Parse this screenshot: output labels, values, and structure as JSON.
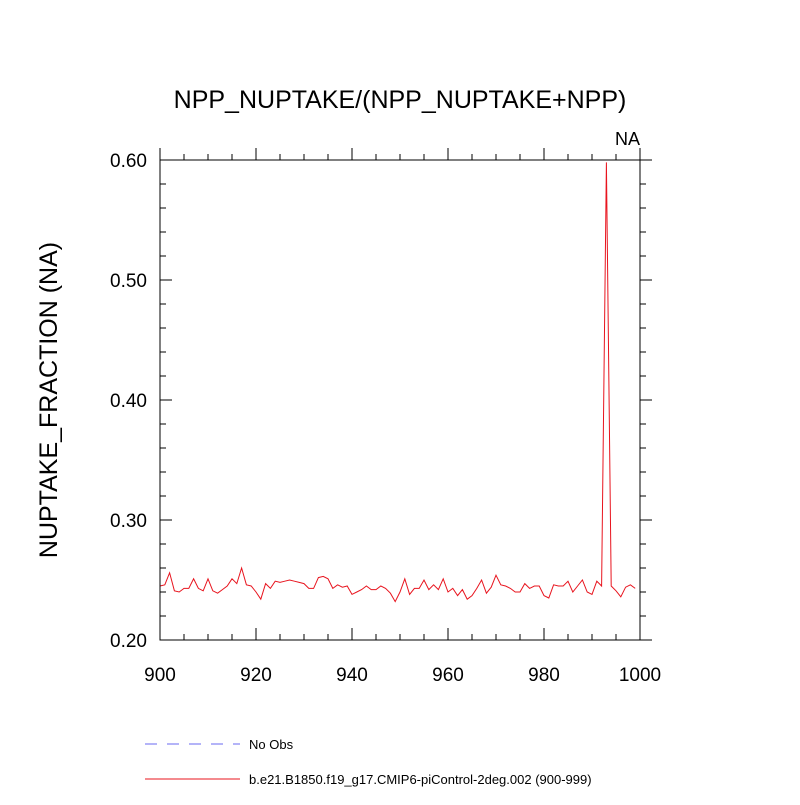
{
  "chart_data": {
    "type": "line",
    "title": "NPP_NUPTAKE/(NPP_NUPTAKE+NPP)",
    "corner_label": "NA",
    "ylabel": "NUPTAKE_FRACTION  (NA)",
    "xlabel": "",
    "xlim": [
      900,
      1000
    ],
    "ylim": [
      0.2,
      0.6
    ],
    "x_ticks": [
      900,
      920,
      940,
      960,
      980,
      1000
    ],
    "y_ticks": [
      0.2,
      0.3,
      0.4,
      0.5,
      0.6
    ],
    "y_tick_labels": [
      "0.20",
      "0.30",
      "0.40",
      "0.50",
      "0.60"
    ],
    "x_minor_step": 5,
    "y_minor_step": 0.02,
    "grid": false,
    "legend_position": "bottom",
    "series": [
      {
        "name": "No Obs",
        "color": "#6a6af0",
        "dash": "dashed",
        "x": [],
        "y": []
      },
      {
        "name": "b.e21.B1850.f19_g17.CMIP6-piControl-2deg.002 (900-999)",
        "color": "#e8141e",
        "dash": "solid",
        "x": [
          900,
          901,
          902,
          903,
          904,
          905,
          906,
          907,
          908,
          909,
          910,
          911,
          912,
          913,
          914,
          915,
          916,
          917,
          918,
          919,
          920,
          921,
          922,
          923,
          924,
          925,
          926,
          927,
          928,
          929,
          930,
          931,
          932,
          933,
          934,
          935,
          936,
          937,
          938,
          939,
          940,
          941,
          942,
          943,
          944,
          945,
          946,
          947,
          948,
          949,
          950,
          951,
          952,
          953,
          954,
          955,
          956,
          957,
          958,
          959,
          960,
          961,
          962,
          963,
          964,
          965,
          966,
          967,
          968,
          969,
          970,
          971,
          972,
          973,
          974,
          975,
          976,
          977,
          978,
          979,
          980,
          981,
          982,
          983,
          984,
          985,
          986,
          987,
          988,
          989,
          990,
          991,
          992,
          993,
          994,
          995,
          996,
          997,
          998,
          999
        ],
        "y": [
          0.245,
          0.246,
          0.256,
          0.241,
          0.24,
          0.243,
          0.243,
          0.251,
          0.243,
          0.241,
          0.251,
          0.241,
          0.239,
          0.242,
          0.245,
          0.251,
          0.247,
          0.26,
          0.246,
          0.245,
          0.24,
          0.234,
          0.247,
          0.243,
          0.249,
          0.248,
          0.249,
          0.25,
          0.249,
          0.248,
          0.247,
          0.243,
          0.243,
          0.252,
          0.253,
          0.251,
          0.243,
          0.246,
          0.244,
          0.245,
          0.238,
          0.24,
          0.242,
          0.245,
          0.242,
          0.242,
          0.245,
          0.243,
          0.239,
          0.232,
          0.24,
          0.251,
          0.238,
          0.243,
          0.243,
          0.25,
          0.242,
          0.246,
          0.242,
          0.251,
          0.24,
          0.243,
          0.237,
          0.242,
          0.234,
          0.237,
          0.243,
          0.25,
          0.239,
          0.244,
          0.254,
          0.246,
          0.245,
          0.243,
          0.24,
          0.24,
          0.247,
          0.243,
          0.245,
          0.245,
          0.237,
          0.235,
          0.246,
          0.245,
          0.245,
          0.249,
          0.24,
          0.245,
          0.25,
          0.24,
          0.238,
          0.249,
          0.245,
          0.598,
          0.245,
          0.241,
          0.236,
          0.244,
          0.246,
          0.243
        ]
      }
    ]
  }
}
